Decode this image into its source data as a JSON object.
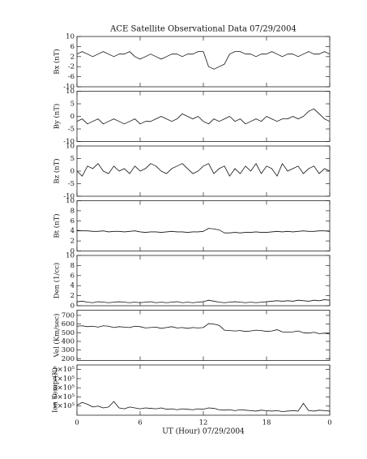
{
  "chart_data": [
    {
      "type": "line",
      "title": "ACE Satellite Observational Data   07/29/2004",
      "y_label": "Bx (nT)",
      "x": [
        0,
        0.5,
        1,
        1.5,
        2,
        2.5,
        3,
        3.5,
        4,
        4.5,
        5,
        5.5,
        6,
        6.5,
        7,
        7.5,
        8,
        8.5,
        9,
        9.5,
        10,
        10.5,
        11,
        11.5,
        12,
        12.5,
        13,
        13.5,
        14,
        14.5,
        15,
        15.5,
        16,
        16.5,
        17,
        17.5,
        18,
        18.5,
        19,
        19.5,
        20,
        20.5,
        21,
        21.5,
        22,
        22.5,
        23,
        23.5,
        24
      ],
      "values": [
        3,
        4,
        3,
        2,
        3,
        4,
        3,
        2,
        3,
        3,
        4,
        2,
        1,
        2,
        3,
        2,
        1,
        2,
        3,
        3,
        2,
        3,
        3,
        4,
        4,
        -2,
        -3,
        -2,
        -1,
        3,
        4,
        4,
        3,
        3,
        2,
        3,
        3,
        4,
        3,
        2,
        3,
        3,
        2,
        3,
        4,
        3,
        3,
        4,
        3
      ],
      "xlim": [
        0,
        24
      ],
      "xticks": [
        0,
        6,
        12,
        18,
        24
      ],
      "ylim": [
        -10,
        10
      ],
      "yticks": [
        10,
        6,
        2,
        -2,
        -6,
        -10
      ]
    },
    {
      "type": "line",
      "y_label": "By (nT)",
      "x": [
        0,
        0.5,
        1,
        1.5,
        2,
        2.5,
        3,
        3.5,
        4,
        4.5,
        5,
        5.5,
        6,
        6.5,
        7,
        7.5,
        8,
        8.5,
        9,
        9.5,
        10,
        10.5,
        11,
        11.5,
        12,
        12.5,
        13,
        13.5,
        14,
        14.5,
        15,
        15.5,
        16,
        16.5,
        17,
        17.5,
        18,
        18.5,
        19,
        19.5,
        20,
        20.5,
        21,
        21.5,
        22,
        22.5,
        23,
        23.5,
        24
      ],
      "values": [
        -2,
        -1,
        -3,
        -2,
        -1,
        -3,
        -2,
        -1,
        -2,
        -3,
        -2,
        -1,
        -3,
        -2,
        -2,
        -1,
        0,
        -1,
        -2,
        -1,
        1,
        0,
        -1,
        0,
        -2,
        -3,
        -1,
        -2,
        -1,
        0,
        -2,
        -1,
        -3,
        -2,
        -1,
        -2,
        0,
        -1,
        -2,
        -1,
        -1,
        0,
        -1,
        0,
        2,
        3,
        1,
        -1,
        -2
      ],
      "xlim": [
        0,
        24
      ],
      "xticks": [
        0,
        6,
        12,
        18,
        24
      ],
      "ylim": [
        -10,
        10
      ],
      "yticks": [
        10,
        5,
        0,
        -5,
        -10
      ]
    },
    {
      "type": "line",
      "y_label": "Bz (nT)",
      "x": [
        0,
        0.5,
        1,
        1.5,
        2,
        2.5,
        3,
        3.5,
        4,
        4.5,
        5,
        5.5,
        6,
        6.5,
        7,
        7.5,
        8,
        8.5,
        9,
        9.5,
        10,
        10.5,
        11,
        11.5,
        12,
        12.5,
        13,
        13.5,
        14,
        14.5,
        15,
        15.5,
        16,
        16.5,
        17,
        17.5,
        18,
        18.5,
        19,
        19.5,
        20,
        20.5,
        21,
        21.5,
        22,
        22.5,
        23,
        23.5,
        24
      ],
      "values": [
        0,
        -2,
        2,
        1,
        3,
        0,
        -1,
        2,
        0,
        1,
        -1,
        2,
        0,
        1,
        3,
        2,
        0,
        -1,
        1,
        2,
        3,
        1,
        -1,
        0,
        2,
        3,
        -1,
        1,
        2,
        -2,
        1,
        -1,
        2,
        0,
        3,
        -1,
        2,
        1,
        -2,
        3,
        0,
        1,
        2,
        -1,
        1,
        2,
        -1,
        1,
        0
      ],
      "xlim": [
        0,
        24
      ],
      "xticks": [
        0,
        6,
        12,
        18,
        24
      ],
      "ylim": [
        -10,
        10
      ],
      "yticks": [
        10,
        5,
        0,
        -5,
        -10
      ]
    },
    {
      "type": "line",
      "y_label": "Bt (nT)",
      "x": [
        0,
        0.5,
        1,
        1.5,
        2,
        2.5,
        3,
        3.5,
        4,
        4.5,
        5,
        5.5,
        6,
        6.5,
        7,
        7.5,
        8,
        8.5,
        9,
        9.5,
        10,
        10.5,
        11,
        11.5,
        12,
        12.5,
        13,
        13.5,
        14,
        14.5,
        15,
        15.5,
        16,
        16.5,
        17,
        17.5,
        18,
        18.5,
        19,
        19.5,
        20,
        20.5,
        21,
        21.5,
        22,
        22.5,
        23,
        23.5,
        24
      ],
      "values": [
        4.1,
        4.0,
        4.0,
        3.9,
        3.9,
        4.0,
        3.8,
        3.9,
        3.9,
        3.8,
        3.9,
        4.0,
        3.8,
        3.7,
        3.8,
        3.8,
        3.7,
        3.8,
        3.9,
        3.8,
        3.8,
        3.7,
        3.8,
        3.8,
        3.9,
        4.5,
        4.4,
        4.2,
        3.6,
        3.6,
        3.7,
        3.6,
        3.7,
        3.7,
        3.8,
        3.7,
        3.7,
        3.8,
        3.9,
        3.8,
        3.9,
        3.8,
        3.9,
        4.0,
        3.9,
        3.9,
        4.0,
        4.0,
        3.9
      ],
      "xlim": [
        0,
        24
      ],
      "xticks": [
        0,
        6,
        12,
        18,
        24
      ],
      "ylim": [
        0,
        10
      ],
      "yticks": [
        0,
        2,
        4,
        6,
        8,
        10
      ]
    },
    {
      "type": "line",
      "y_label": "Den (1/cc)",
      "x": [
        0,
        0.5,
        1,
        1.5,
        2,
        2.5,
        3,
        3.5,
        4,
        4.5,
        5,
        5.5,
        6,
        6.5,
        7,
        7.5,
        8,
        8.5,
        9,
        9.5,
        10,
        10.5,
        11,
        11.5,
        12,
        12.5,
        13,
        13.5,
        14,
        14.5,
        15,
        15.5,
        16,
        16.5,
        17,
        17.5,
        18,
        18.5,
        19,
        19.5,
        20,
        20.5,
        21,
        21.5,
        22,
        22.5,
        23,
        23.5,
        24
      ],
      "values": [
        0.8,
        0.9,
        0.7,
        0.6,
        0.8,
        0.7,
        0.6,
        0.7,
        0.8,
        0.7,
        0.6,
        0.7,
        0.6,
        0.7,
        0.8,
        0.6,
        0.7,
        0.6,
        0.7,
        0.8,
        0.6,
        0.7,
        0.6,
        0.7,
        0.8,
        1.1,
        0.9,
        0.7,
        0.6,
        0.7,
        0.8,
        0.7,
        0.6,
        0.7,
        0.6,
        0.7,
        0.8,
        0.9,
        1.0,
        0.9,
        1.0,
        0.9,
        1.1,
        1.0,
        0.9,
        1.1,
        1.0,
        1.2,
        1.1
      ],
      "xlim": [
        0,
        24
      ],
      "xticks": [
        0,
        6,
        12,
        18,
        24
      ],
      "ylim": [
        0,
        10
      ],
      "yticks": [
        0,
        2,
        4,
        6,
        8,
        10
      ]
    },
    {
      "type": "line",
      "y_label": "Vel (Km/sec)",
      "x": [
        0,
        0.5,
        1,
        1.5,
        2,
        2.5,
        3,
        3.5,
        4,
        4.5,
        5,
        5.5,
        6,
        6.5,
        7,
        7.5,
        8,
        8.5,
        9,
        9.5,
        10,
        10.5,
        11,
        11.5,
        12,
        12.5,
        13,
        13.5,
        14,
        14.5,
        15,
        15.5,
        16,
        16.5,
        17,
        17.5,
        18,
        18.5,
        19,
        19.5,
        20,
        20.5,
        21,
        21.5,
        22,
        22.5,
        23,
        23.5,
        24
      ],
      "values": [
        575,
        580,
        570,
        575,
        565,
        580,
        575,
        560,
        570,
        565,
        560,
        575,
        570,
        555,
        560,
        565,
        550,
        560,
        570,
        555,
        560,
        550,
        560,
        555,
        560,
        605,
        600,
        585,
        530,
        525,
        520,
        525,
        515,
        520,
        530,
        525,
        515,
        520,
        535,
        510,
        505,
        510,
        520,
        500,
        495,
        505,
        490,
        495,
        485
      ],
      "xlim": [
        0,
        24
      ],
      "xticks": [
        0,
        6,
        12,
        18,
        24
      ],
      "ylim": [
        180,
        760
      ],
      "yticks": [
        200,
        300,
        400,
        500,
        600,
        700
      ]
    },
    {
      "type": "line",
      "y_label": "Ion Temp (K)",
      "x_label": "UT (Hour)  07/29/2004",
      "x": [
        0,
        0.5,
        1,
        1.5,
        2,
        2.5,
        3,
        3.5,
        4,
        4.5,
        5,
        5.5,
        6,
        6.5,
        7,
        7.5,
        8,
        8.5,
        9,
        9.5,
        10,
        10.5,
        11,
        11.5,
        12,
        12.5,
        13,
        13.5,
        14,
        14.5,
        15,
        15.5,
        16,
        16.5,
        17,
        17.5,
        18,
        18.5,
        19,
        19.5,
        20,
        20.5,
        21,
        21.5,
        22,
        22.5,
        23,
        23.5,
        24
      ],
      "values": [
        110000,
        140000,
        120000,
        90000,
        100000,
        80000,
        90000,
        150000,
        80000,
        70000,
        90000,
        80000,
        70000,
        80000,
        75000,
        70000,
        80000,
        65000,
        70000,
        60000,
        70000,
        65000,
        60000,
        70000,
        65000,
        80000,
        75000,
        60000,
        55000,
        60000,
        50000,
        60000,
        55000,
        50000,
        45000,
        55000,
        50000,
        45000,
        50000,
        40000,
        45000,
        50000,
        45000,
        130000,
        50000,
        45000,
        55000,
        50000,
        45000
      ],
      "xlim": [
        0,
        24
      ],
      "xticks": [
        0,
        6,
        12,
        18,
        {
          "value": 24,
          "label": "0"
        }
      ],
      "ylim": [
        0,
        550000
      ],
      "yticks": [
        {
          "value": 100000,
          "label": "1×10⁵"
        },
        {
          "value": 200000,
          "label": "2×10⁵"
        },
        {
          "value": 300000,
          "label": "3×10⁵"
        },
        {
          "value": 400000,
          "label": "4×10⁵"
        },
        {
          "value": 500000,
          "label": "5×10⁵"
        }
      ]
    }
  ]
}
